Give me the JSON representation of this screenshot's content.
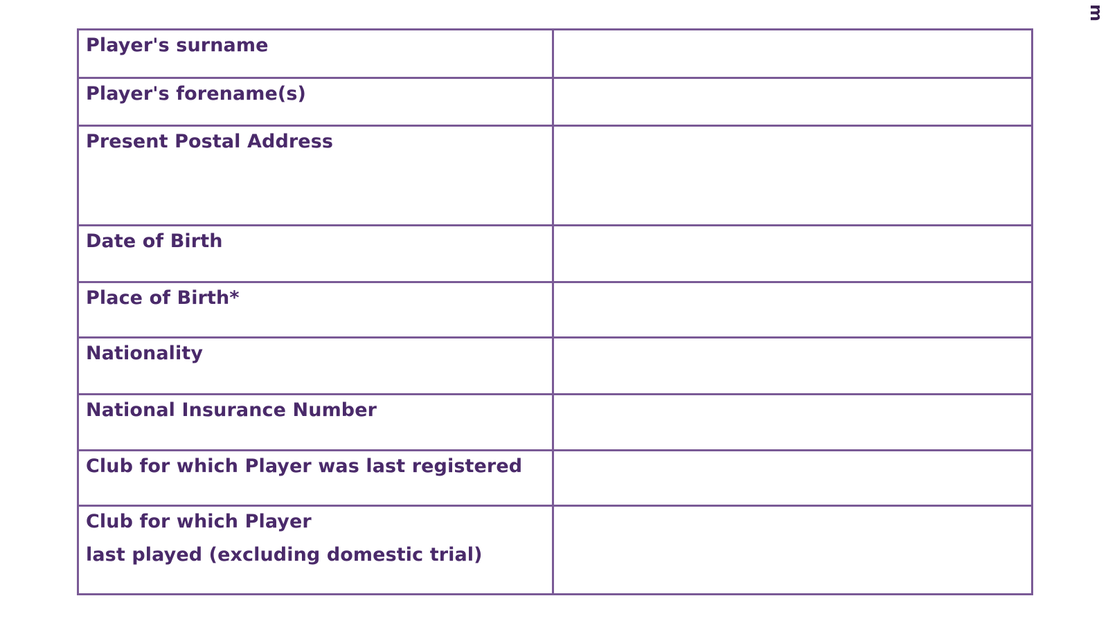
{
  "edge_glyph": "m",
  "form": {
    "rows": [
      {
        "label": "Player's surname",
        "value": ""
      },
      {
        "label": "Player's forename(s)",
        "value": ""
      },
      {
        "label": "Present Postal Address",
        "value": ""
      },
      {
        "label": "Date of Birth",
        "value": ""
      },
      {
        "label": "Place of Birth*",
        "value": ""
      },
      {
        "label": "Nationality",
        "value": ""
      },
      {
        "label": "National Insurance Number",
        "value": ""
      },
      {
        "label": "Club for which Player was last registered",
        "value": ""
      },
      {
        "label": "Club for which Player\nlast played (excluding domestic trial)",
        "value": ""
      }
    ]
  },
  "colors": {
    "border": "#7a5a96",
    "label_text": "#4a2a6a",
    "background": "#ffffff"
  }
}
